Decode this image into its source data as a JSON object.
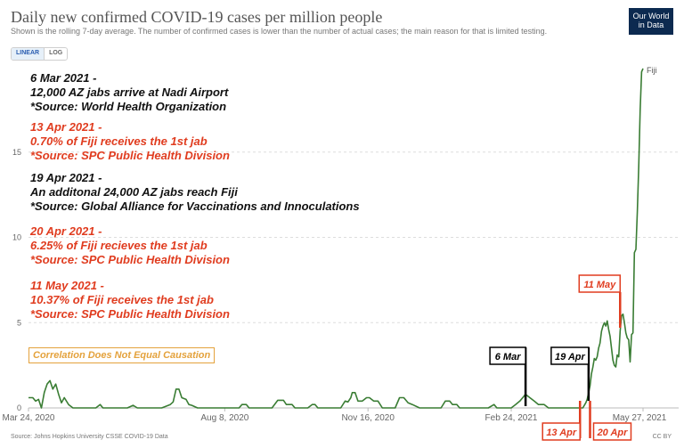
{
  "header": {
    "title": "Daily new confirmed COVID-19 cases per million people",
    "subtitle": "Shown is the rolling 7-day average. The number of confirmed cases is lower than the number of actual cases; the main reason for that is limited testing.",
    "logo_line1": "Our World",
    "logo_line2": "in Data"
  },
  "scale_toggle": {
    "linear_label": "LINEAR",
    "log_label": "LOG",
    "active": "linear"
  },
  "footer": {
    "source": "Source: Johns Hopkins University CSSE COVID-19 Data",
    "license": "CC BY"
  },
  "annotations": [
    {
      "color": "black",
      "lines": [
        "6 Mar 2021 -",
        "12,000 AZ jabs arrive at Nadi Airport",
        "*Source: World Health Organization"
      ]
    },
    {
      "color": "red",
      "lines": [
        "13 Apr 2021 -",
        "0.70% of Fiji receives the 1st jab",
        "*Source: SPC Public Health Division"
      ]
    },
    {
      "color": "black",
      "lines": [
        "19 Apr 2021 -",
        "An additonal 24,000 AZ jabs reach Fiji",
        "*Source: Global Alliance for Vaccinations and Innoculations"
      ]
    },
    {
      "color": "red",
      "lines": [
        "20 Apr 2021 -",
        "6.25% of Fiji recieves the 1st jab",
        "*Source: SPC Public Health Division"
      ]
    },
    {
      "color": "red",
      "lines": [
        "11 May 2021 -",
        "10.37% of Fiji receives the 1st jab",
        "*Source: SPC Public Health Division"
      ]
    }
  ],
  "correlation_note": "Correlation Does Not Equal Causation",
  "colors": {
    "series": "#3a7d34",
    "annotation_red": "#e03c1f",
    "note_orange": "#e4a23c",
    "grid": "#dddddd"
  },
  "chart_data": {
    "type": "line",
    "title": "Daily new confirmed COVID-19 cases per million people",
    "x_axis": {
      "type": "date",
      "range": [
        "2020-03-24",
        "2021-05-27"
      ],
      "tick_labels": [
        "Mar 24, 2020",
        "Aug 8, 2020",
        "Nov 16, 2020",
        "Feb 24, 2021",
        "May 27, 2021"
      ]
    },
    "y_axis": {
      "range": [
        0,
        20
      ],
      "tick_labels": [
        "0",
        "5",
        "10",
        "15"
      ],
      "ticks": [
        0,
        5,
        10,
        15
      ],
      "scale": "linear"
    },
    "grid": "horizontal dashed",
    "series": [
      {
        "name": "Fiji",
        "color": "#3a7d34",
        "points": [
          [
            "2020-03-24",
            0.6
          ],
          [
            "2020-03-27",
            0.6
          ],
          [
            "2020-03-29",
            0.4
          ],
          [
            "2020-03-31",
            0.5
          ],
          [
            "2020-04-02",
            0.0
          ],
          [
            "2020-04-04",
            0.9
          ],
          [
            "2020-04-06",
            1.4
          ],
          [
            "2020-04-08",
            1.6
          ],
          [
            "2020-04-10",
            1.1
          ],
          [
            "2020-04-12",
            1.4
          ],
          [
            "2020-04-14",
            0.8
          ],
          [
            "2020-04-16",
            0.3
          ],
          [
            "2020-04-18",
            0.6
          ],
          [
            "2020-04-21",
            0.2
          ],
          [
            "2020-04-24",
            0.0
          ],
          [
            "2020-05-10",
            0.0
          ],
          [
            "2020-05-13",
            0.2
          ],
          [
            "2020-05-15",
            0.0
          ],
          [
            "2020-06-01",
            0.0
          ],
          [
            "2020-06-05",
            0.15
          ],
          [
            "2020-06-08",
            0.0
          ],
          [
            "2020-06-25",
            0.0
          ],
          [
            "2020-07-01",
            0.2
          ],
          [
            "2020-07-03",
            0.35
          ],
          [
            "2020-07-05",
            1.1
          ],
          [
            "2020-07-07",
            1.1
          ],
          [
            "2020-07-09",
            0.6
          ],
          [
            "2020-07-12",
            0.5
          ],
          [
            "2020-07-14",
            0.2
          ],
          [
            "2020-07-16",
            0.15
          ],
          [
            "2020-07-20",
            0.0
          ],
          [
            "2020-08-18",
            0.0
          ],
          [
            "2020-08-20",
            0.2
          ],
          [
            "2020-08-23",
            0.2
          ],
          [
            "2020-08-25",
            0.0
          ],
          [
            "2020-09-10",
            0.0
          ],
          [
            "2020-09-14",
            0.45
          ],
          [
            "2020-09-18",
            0.45
          ],
          [
            "2020-09-20",
            0.2
          ],
          [
            "2020-09-24",
            0.2
          ],
          [
            "2020-09-26",
            0.0
          ],
          [
            "2020-10-05",
            0.0
          ],
          [
            "2020-10-08",
            0.2
          ],
          [
            "2020-10-10",
            0.2
          ],
          [
            "2020-10-12",
            0.0
          ],
          [
            "2020-10-28",
            0.0
          ],
          [
            "2020-10-31",
            0.4
          ],
          [
            "2020-11-02",
            0.35
          ],
          [
            "2020-11-04",
            0.6
          ],
          [
            "2020-11-05",
            0.9
          ],
          [
            "2020-11-07",
            0.9
          ],
          [
            "2020-11-09",
            0.4
          ],
          [
            "2020-11-12",
            0.4
          ],
          [
            "2020-11-15",
            0.6
          ],
          [
            "2020-11-17",
            0.6
          ],
          [
            "2020-11-20",
            0.4
          ],
          [
            "2020-11-23",
            0.4
          ],
          [
            "2020-11-26",
            0.0
          ],
          [
            "2020-12-05",
            0.0
          ],
          [
            "2020-12-08",
            0.6
          ],
          [
            "2020-12-11",
            0.6
          ],
          [
            "2020-12-14",
            0.3
          ],
          [
            "2020-12-17",
            0.2
          ],
          [
            "2020-12-22",
            0.0
          ],
          [
            "2021-01-06",
            0.0
          ],
          [
            "2021-01-09",
            0.4
          ],
          [
            "2021-01-12",
            0.4
          ],
          [
            "2021-01-14",
            0.2
          ],
          [
            "2021-01-17",
            0.2
          ],
          [
            "2021-01-19",
            0.0
          ],
          [
            "2021-02-08",
            0.0
          ],
          [
            "2021-02-12",
            0.2
          ],
          [
            "2021-02-14",
            0.0
          ],
          [
            "2021-02-24",
            0.0
          ],
          [
            "2021-02-27",
            0.2
          ],
          [
            "2021-03-02",
            0.4
          ],
          [
            "2021-03-04",
            0.6
          ],
          [
            "2021-03-06",
            0.8
          ],
          [
            "2021-03-09",
            0.6
          ],
          [
            "2021-03-12",
            0.4
          ],
          [
            "2021-03-15",
            0.2
          ],
          [
            "2021-03-19",
            0.2
          ],
          [
            "2021-03-22",
            0.0
          ],
          [
            "2021-04-15",
            0.0
          ],
          [
            "2021-04-17",
            0.3
          ],
          [
            "2021-04-18",
            0.5
          ],
          [
            "2021-04-19",
            0.9
          ],
          [
            "2021-04-20",
            1.3
          ],
          [
            "2021-04-21",
            2.0
          ],
          [
            "2021-04-22",
            2.4
          ],
          [
            "2021-04-23",
            2.9
          ],
          [
            "2021-04-24",
            2.8
          ],
          [
            "2021-04-25",
            3.0
          ],
          [
            "2021-04-26",
            3.5
          ],
          [
            "2021-04-27",
            3.8
          ],
          [
            "2021-04-28",
            4.5
          ],
          [
            "2021-04-29",
            4.8
          ],
          [
            "2021-04-30",
            5.0
          ],
          [
            "2021-05-01",
            4.8
          ],
          [
            "2021-05-02",
            5.1
          ],
          [
            "2021-05-03",
            4.6
          ],
          [
            "2021-05-04",
            4.2
          ],
          [
            "2021-05-05",
            3.5
          ],
          [
            "2021-05-06",
            2.8
          ],
          [
            "2021-05-07",
            2.5
          ],
          [
            "2021-05-08",
            2.4
          ],
          [
            "2021-05-09",
            3.1
          ],
          [
            "2021-05-10",
            3.0
          ],
          [
            "2021-05-11",
            4.5
          ],
          [
            "2021-05-12",
            5.4
          ],
          [
            "2021-05-13",
            5.5
          ],
          [
            "2021-05-14",
            5.0
          ],
          [
            "2021-05-15",
            4.4
          ],
          [
            "2021-05-16",
            4.1
          ],
          [
            "2021-05-17",
            4.0
          ],
          [
            "2021-05-18",
            2.7
          ],
          [
            "2021-05-19",
            4.3
          ],
          [
            "2021-05-20",
            4.4
          ],
          [
            "2021-05-21",
            9.1
          ],
          [
            "2021-05-22",
            9.3
          ],
          [
            "2021-05-23",
            11.5
          ],
          [
            "2021-05-24",
            14.2
          ],
          [
            "2021-05-25",
            17.5
          ],
          [
            "2021-05-26",
            19.7
          ],
          [
            "2021-05-27",
            19.9
          ]
        ]
      }
    ],
    "markers": [
      {
        "label": "6 Mar",
        "date": "2021-03-06",
        "color": "black"
      },
      {
        "label": "19 Apr",
        "date": "2021-04-19",
        "color": "black"
      },
      {
        "label": "13 Apr",
        "date": "2021-04-13",
        "color": "red"
      },
      {
        "label": "20 Apr",
        "date": "2021-04-20",
        "color": "red"
      },
      {
        "label": "11 May",
        "date": "2021-05-11",
        "color": "red"
      }
    ]
  }
}
